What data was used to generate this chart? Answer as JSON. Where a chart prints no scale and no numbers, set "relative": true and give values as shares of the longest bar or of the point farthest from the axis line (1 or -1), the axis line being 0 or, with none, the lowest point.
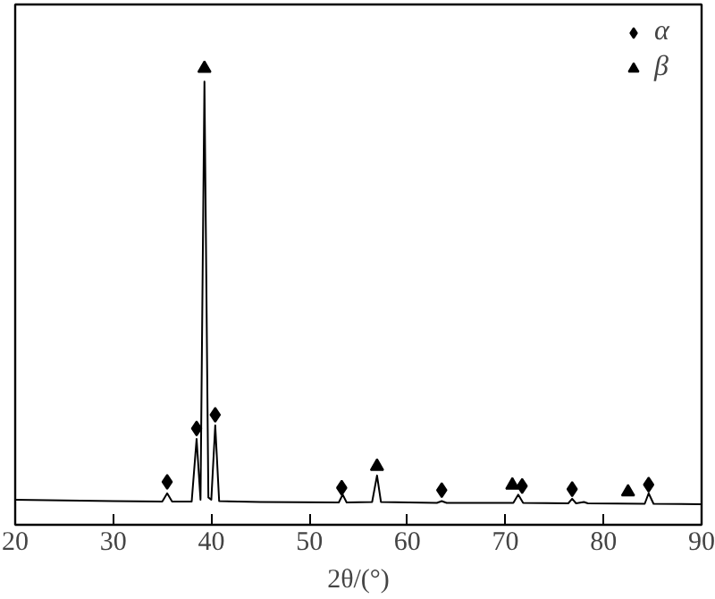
{
  "chart_data": {
    "type": "line",
    "xlabel": "2θ/(°)",
    "relative": true,
    "xlim": [
      20,
      90
    ],
    "xticks": [
      20,
      30,
      40,
      50,
      60,
      70,
      80,
      90
    ],
    "legend": "top right",
    "grid": false,
    "series": [
      {
        "color": "#000000",
        "x": [
          20,
          30,
          35.0,
          35.5,
          36.0,
          38.0,
          38.5,
          38.9,
          39.3,
          39.7,
          40.0,
          40.4,
          40.8,
          45,
          53.0,
          53.4,
          53.8,
          56.4,
          56.9,
          57.3,
          63.0,
          63.5,
          64,
          70.8,
          71.3,
          71.8,
          76.4,
          76.8,
          77.2,
          78,
          78.4,
          84.2,
          84.6,
          85.1,
          90
        ],
        "values": [
          0.055,
          0.052,
          0.051,
          0.069,
          0.051,
          0.051,
          0.188,
          0.055,
          0.971,
          0.06,
          0.055,
          0.218,
          0.052,
          0.05,
          0.049,
          0.066,
          0.049,
          0.05,
          0.108,
          0.05,
          0.048,
          0.052,
          0.048,
          0.048,
          0.066,
          0.048,
          0.047,
          0.057,
          0.047,
          0.05,
          0.047,
          0.046,
          0.069,
          0.046,
          0.045
        ]
      },
      {
        "type": "scatter",
        "name": "α",
        "color": "#000000",
        "marker": "diamond",
        "x": [
          35.5,
          38.5,
          40.4,
          53.3,
          63.5,
          71.7,
          76.8,
          84.6
        ],
        "values": [
          0.094,
          0.211,
          0.241,
          0.081,
          0.076,
          0.085,
          0.078,
          0.088
        ]
      },
      {
        "type": "scatter",
        "name": "β",
        "color": "#000000",
        "marker": "triangle",
        "x": [
          39.3,
          56.9,
          70.7,
          82.5
        ],
        "values": [
          1.0,
          0.128,
          0.087,
          0.072
        ]
      }
    ]
  }
}
